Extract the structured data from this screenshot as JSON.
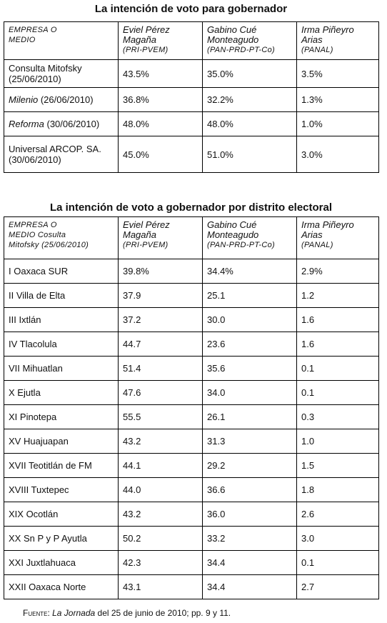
{
  "table1": {
    "title": "La intención de voto para gobernador",
    "header": [
      [
        "EMPRESA O",
        "MEDIO"
      ]
    ],
    "candidates": [
      {
        "name": [
          "Eviel Pérez",
          "Magaña"
        ],
        "party": "(PRI-PVEM)"
      },
      {
        "name": [
          "Gabino Cué",
          "Monteagudo"
        ],
        "party": "(PAN-PRD-PT-Co)"
      },
      {
        "name": [
          "Irma Piñeyro",
          "Arias"
        ],
        "party": "(PANAL)"
      }
    ],
    "rows": [
      {
        "name": "Consulta Mitofsky",
        "date": "(25/06/2010)",
        "values": [
          "43.5%",
          "35.0%",
          "3.5%"
        ]
      },
      {
        "name": "Milenio",
        "date": "(26/06/2010)",
        "values": [
          "36.8%",
          "32.2%",
          "1.3%"
        ]
      },
      {
        "name": "Reforma",
        "date": "(30/06/2010)",
        "values": [
          "48.0%",
          "48.0%",
          "1.0%"
        ]
      },
      {
        "name": "Universal ARCOP. SA.",
        "date": "(30/06/2010)",
        "values": [
          "45.0%",
          "51.0%",
          "3.0%"
        ]
      }
    ]
  },
  "table2": {
    "title": "La intención de voto a gobernador por distrito electoral",
    "header": [
      [
        "EMPRESA O",
        "MEDIO Cosulta",
        "Mitofsky (25/06/2010)"
      ]
    ],
    "candidates": [
      {
        "name": [
          "Eviel Pérez",
          "Magaña"
        ],
        "party": "(PRI-PVEM)"
      },
      {
        "name": [
          "Gabino Cué",
          "Monteagudo"
        ],
        "party": "(PAN-PRD-PT-Co)"
      },
      {
        "name": [
          "Irma Piñeyro",
          "Arias"
        ],
        "party": "(PANAL)"
      }
    ],
    "rows": [
      {
        "name": "I Oaxaca SUR",
        "values": [
          "39.8%",
          "34.4%",
          "2.9%"
        ]
      },
      {
        "name": "II Villa de Elta",
        "values": [
          "37.9",
          "25.1",
          "1.2"
        ]
      },
      {
        "name": "III Ixtlán",
        "values": [
          "37.2",
          "30.0",
          "1.6"
        ]
      },
      {
        "name": "IV Tlacolula",
        "values": [
          "44.7",
          "23.6",
          "1.6"
        ]
      },
      {
        "name": "VII Mihuatlan",
        "values": [
          "51.4",
          "35.6",
          "0.1"
        ]
      },
      {
        "name": "X Ejutla",
        "values": [
          "47.6",
          "34.0",
          "0.1"
        ]
      },
      {
        "name": "XI Pinotepa",
        "values": [
          "55.5",
          "26.1",
          "0.3"
        ]
      },
      {
        "name": "XV Huajuapan",
        "values": [
          "43.2",
          "31.3",
          "1.0"
        ]
      },
      {
        "name": "XVII Teotitlán de FM",
        "values": [
          "44.1",
          "29.2",
          "1.5"
        ]
      },
      {
        "name": "XVIII Tuxtepec",
        "values": [
          "44.0",
          "36.6",
          "1.8"
        ]
      },
      {
        "name": "XIX Ocotlán",
        "values": [
          "43.2",
          "36.0",
          "2.6"
        ]
      },
      {
        "name": "XX Sn P y P Ayutla",
        "values": [
          "50.2",
          "33.2",
          "3.0"
        ]
      },
      {
        "name": "XXI Juxtlahuaca",
        "values": [
          "42.3",
          "34.4",
          "0.1"
        ]
      },
      {
        "name": "XXII Oaxaca Norte",
        "values": [
          "43.1",
          "34.4",
          "2.7"
        ]
      }
    ]
  },
  "footer": {
    "label": "Fuente:",
    "source": "La Jornada",
    "text": "del 25 de junio de 2010; pp. 9 y 11."
  }
}
